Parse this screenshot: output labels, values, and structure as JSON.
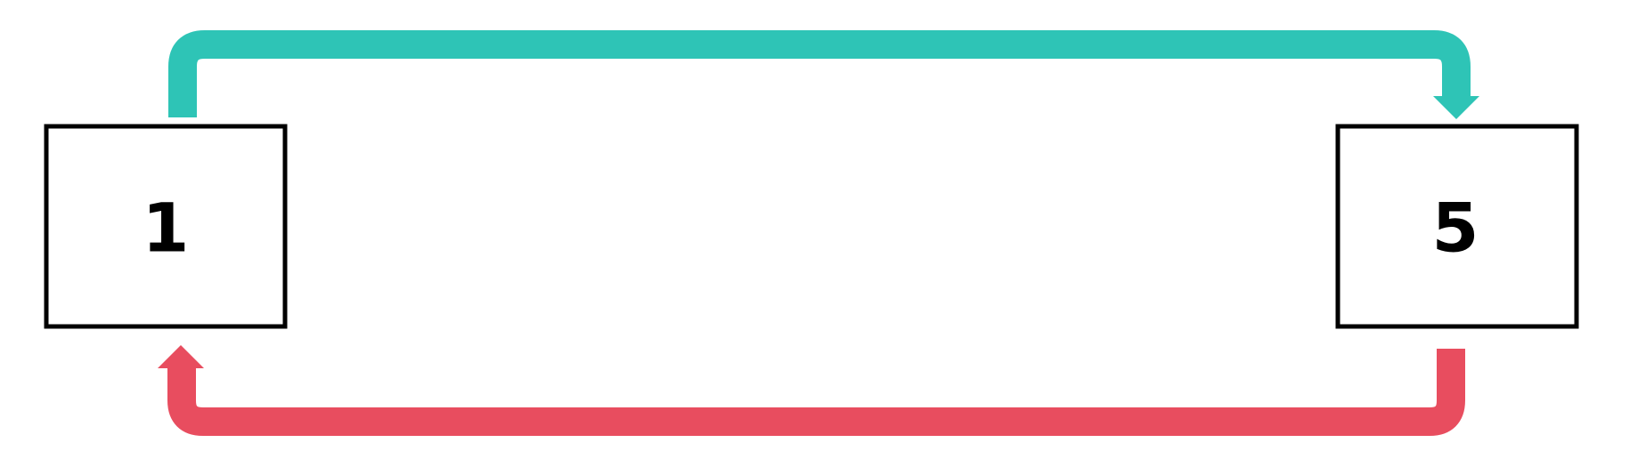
{
  "nodes": [
    {
      "id": "node-1",
      "label": "1"
    },
    {
      "id": "node-5",
      "label": "5"
    }
  ],
  "edges": [
    {
      "from": "1",
      "to": "5",
      "color": "#2ec4b6"
    },
    {
      "from": "5",
      "to": "1",
      "color": "#e84d5f"
    }
  ]
}
